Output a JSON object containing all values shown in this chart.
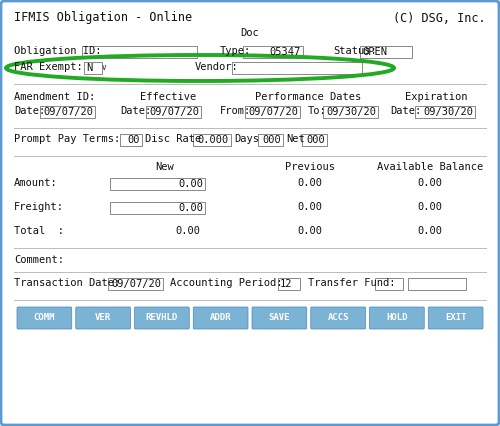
{
  "bg_color": "#e8eef5",
  "border_color": "#5b9bd5",
  "inner_bg": "#ffffff",
  "title_left": "IFMIS Obligation - Online",
  "title_right": "(C) DSG, Inc.",
  "doc_label": "Doc",
  "obligation_label": "Obligation ID:",
  "doc_type_label": "Type:",
  "doc_type_val": "05347",
  "status_label": "Status:",
  "status_val": "OPEN",
  "far_label": "FAR Exempt:",
  "far_val": "N",
  "vendor_label": "Vendor:",
  "amendment_label": "Amendment ID:",
  "effective_label": "Effective",
  "perf_label": "Performance Dates",
  "expiration_label": "Expiration",
  "date_label": "Date:",
  "date_val": "09/07/20",
  "eff_date_val": "09/07/20",
  "perf_from_val": "09/07/20",
  "perf_to_val": "09/30/20",
  "exp_date_val": "09/30/20",
  "prompt_pay_label": "Prompt Pay Terms:",
  "prompt_val": "00",
  "disc_rate_label": "Disc Rate",
  "disc_rate_val": "0.000",
  "days_label": "Days",
  "days_val": "000",
  "net_label": "Net",
  "net_val": "000",
  "col_new": "New",
  "col_prev": "Previous",
  "col_avail": "Available Balance",
  "amount_label": "Amount:",
  "freight_label": "Freight:",
  "total_label": "Total  :",
  "comment_label": "Comment:",
  "trans_date_label": "Transaction Date:",
  "trans_date_val": "09/07/20",
  "acct_period_label": "Accounting Period:",
  "acct_period_val": "12",
  "transfer_fund_label": "Transfer Fund:",
  "buttons": [
    "COMM",
    "VER",
    "REVHLD",
    "ADDR",
    "SAVE",
    "ACCS",
    "HOLD",
    "EXIT"
  ],
  "button_color": "#7ab3d4",
  "button_text_color": "#ffffff",
  "circle_color": "#22aa22",
  "font_size": 7.5,
  "small_font": 6.5,
  "box_edge": "#888888"
}
